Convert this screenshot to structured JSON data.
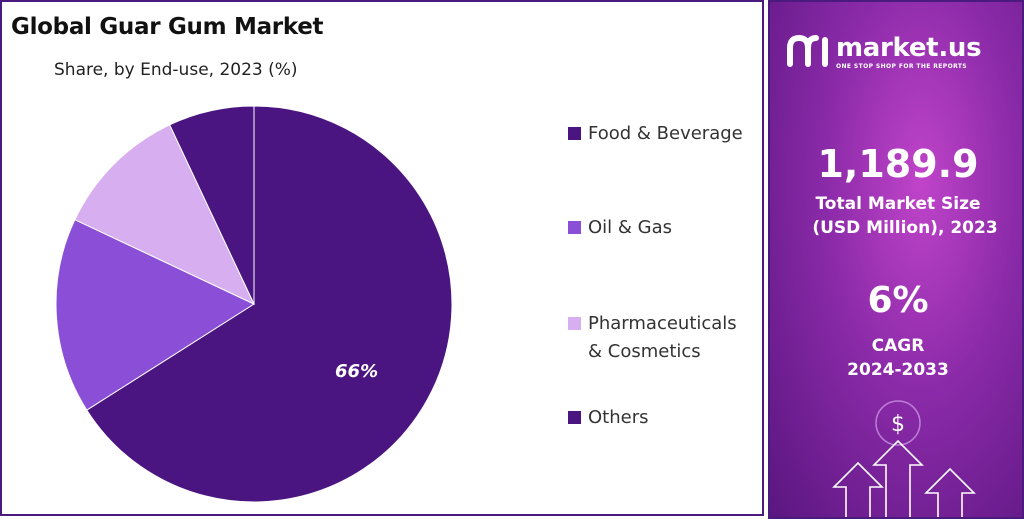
{
  "chart": {
    "title": "Global Guar Gum Market",
    "subtitle": "Share, by End-use, 2023 (%)"
  },
  "chart_data": {
    "type": "pie",
    "title": "Global Guar Gum Market",
    "subtitle": "Share, by End-use, 2023 (%)",
    "slices": [
      {
        "label": "Food & Beverage",
        "value": 66,
        "color": "#4a1580",
        "data_label": "66%"
      },
      {
        "label": "Oil & Gas",
        "value": 16,
        "color": "#8a4fd6",
        "data_label": ""
      },
      {
        "label": "Pharmaceuticals & Cosmetics",
        "value": 11,
        "color": "#d7aef0",
        "data_label": ""
      },
      {
        "label": "Others",
        "value": 7,
        "color": "#4a1580",
        "data_label": ""
      }
    ],
    "legend_placement": "right"
  },
  "legend": {
    "items": [
      {
        "label": "Food & Beverage",
        "color": "#4a1580"
      },
      {
        "label": "Oil & Gas",
        "color": "#8a4fd6"
      },
      {
        "label": "Pharmaceuticals\n& Cosmetics",
        "color": "#d7aef0"
      },
      {
        "label": "Others",
        "color": "#4a1580"
      }
    ]
  },
  "sidebar": {
    "brand_name": "market.us",
    "brand_tagline": "ONE STOP SHOP FOR THE REPORTS",
    "market_size_value": "1,189.9",
    "market_size_label_1": "Total Market Size",
    "market_size_label_2": "(USD Million), 2023",
    "cagr_value": "6%",
    "cagr_label_1": "CAGR",
    "cagr_label_2": "2024-2033",
    "currency_symbol": "$",
    "icons": [
      "market-us-logo-icon",
      "dollar-icon",
      "arrow-up-icon"
    ]
  }
}
